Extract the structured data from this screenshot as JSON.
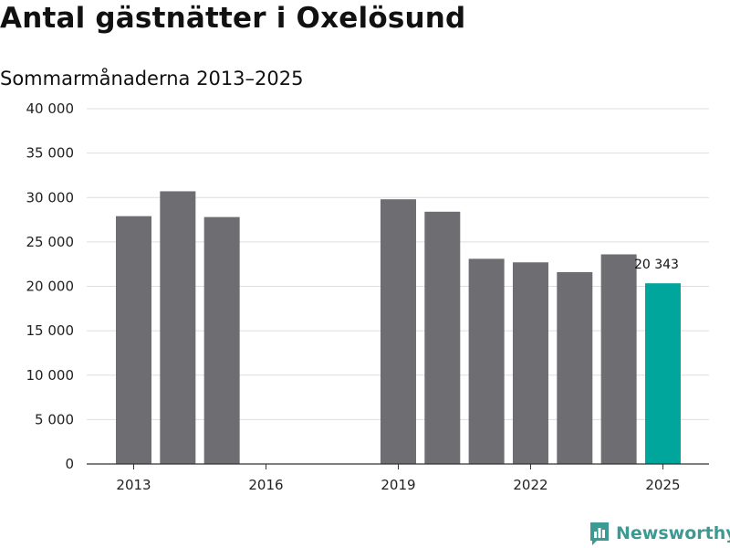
{
  "chart_data": {
    "type": "bar",
    "title": "Antal gästnätter i Oxelösund",
    "subtitle": "Sommarmånaderna 2013–2025",
    "x": [
      2013,
      2014,
      2015,
      2016,
      2017,
      2018,
      2019,
      2020,
      2021,
      2022,
      2023,
      2024,
      2025
    ],
    "values": [
      27900,
      30700,
      27800,
      null,
      null,
      null,
      29800,
      28400,
      23100,
      22700,
      21600,
      23600,
      20343
    ],
    "xticks": [
      2013,
      2016,
      2019,
      2022,
      2025
    ],
    "xtick_labels": [
      "2013",
      "2016",
      "2019",
      "2022",
      "2025"
    ],
    "yticks": [
      0,
      5000,
      10000,
      15000,
      20000,
      25000,
      30000,
      35000,
      40000
    ],
    "ytick_labels": [
      "0",
      "5 000",
      "10 000",
      "15 000",
      "20 000",
      "25 000",
      "30 000",
      "35 000",
      "40 000"
    ],
    "ylim": [
      0,
      40000
    ],
    "grid": true,
    "colors": {
      "default": "#6e6d71",
      "highlight": "#00a69c",
      "grid": "#dddddd",
      "axis": "#333333"
    },
    "highlight_index": 12,
    "data_labels": [
      {
        "index": 12,
        "text": "20 343"
      }
    ]
  },
  "brand": {
    "name": "Newsworthy",
    "icon": "newsworthy-logo-icon",
    "color": "#3d9a93"
  }
}
